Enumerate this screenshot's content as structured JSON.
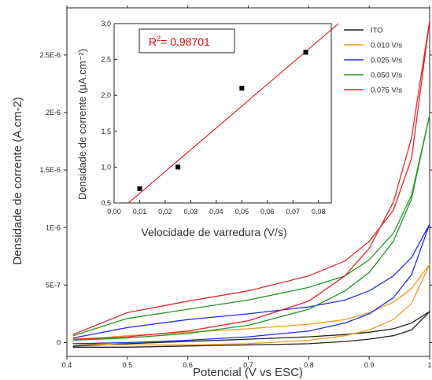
{
  "chart_data": [
    {
      "type": "line",
      "xlabel": "Potencial (V vs ESC)",
      "ylabel": "Densidade de corrente  (A.cm-2)",
      "xlim": [
        0.4,
        1.0
      ],
      "ylim": [
        -1.2e-07,
        2.91e-06
      ],
      "x_ticks": [
        "0.4",
        "0.5",
        "0.6",
        "0.7",
        "0.8",
        "0.9",
        "1"
      ],
      "y_ticks": [
        "0",
        "5E-7",
        "1E-6",
        "1.5E-6",
        "2E-6",
        "2.5E-6"
      ],
      "y_tick_values": [
        0,
        5e-07,
        1e-06,
        1.5e-06,
        2e-06,
        2.5e-06
      ],
      "legend_position": "top-right",
      "series": [
        {
          "name": "ITO",
          "color": "#222222",
          "forward": {
            "x": [
              0.41,
              0.5,
              0.6,
              0.7,
              0.8,
              0.86,
              0.9,
              0.94,
              0.97,
              1.0
            ],
            "y": [
              -3e-08,
              -1e-08,
              1e-08,
              3e-08,
              5e-08,
              7e-08,
              9e-08,
              1.2e-07,
              1.7e-07,
              2.7e-07
            ]
          },
          "reverse": {
            "x": [
              1.0,
              0.97,
              0.94,
              0.9,
              0.86,
              0.8,
              0.7,
              0.6,
              0.5,
              0.41
            ],
            "y": [
              2.7e-07,
              1.1e-07,
              6e-08,
              3e-08,
              1e-08,
              -1e-08,
              -2e-08,
              -3e-08,
              -4e-08,
              -4e-08
            ]
          }
        },
        {
          "name": "0.010 V/s",
          "color": "#f39a1e",
          "forward": {
            "x": [
              0.41,
              0.5,
              0.6,
              0.7,
              0.8,
              0.86,
              0.9,
              0.94,
              0.97,
              1.0
            ],
            "y": [
              2e-08,
              6e-08,
              9e-08,
              1.2e-07,
              1.6e-07,
              2e-07,
              2.6e-07,
              3.5e-07,
              4.7e-07,
              6.8e-07
            ]
          },
          "reverse": {
            "x": [
              1.0,
              0.97,
              0.94,
              0.9,
              0.86,
              0.8,
              0.7,
              0.6,
              0.5,
              0.41
            ],
            "y": [
              6.8e-07,
              3.4e-07,
              2e-07,
              1.1e-07,
              6e-08,
              2e-08,
              -1e-08,
              -2e-08,
              -2e-08,
              -1e-08
            ]
          }
        },
        {
          "name": "0.025 V/s",
          "color": "#1f2ee6",
          "forward": {
            "x": [
              0.41,
              0.5,
              0.6,
              0.7,
              0.8,
              0.86,
              0.9,
              0.94,
              0.97,
              1.0
            ],
            "y": [
              4e-08,
              1.3e-07,
              2e-07,
              2.5e-07,
              3.1e-07,
              3.7e-07,
              4.5e-07,
              5.8e-07,
              7.4e-07,
              1.03e-06
            ]
          },
          "reverse": {
            "x": [
              1.0,
              0.97,
              0.94,
              0.9,
              0.86,
              0.8,
              0.7,
              0.6,
              0.5,
              0.41
            ],
            "y": [
              1.03e-06,
              5.9e-07,
              3.9e-07,
              2.5e-07,
              1.7e-07,
              1e-07,
              5e-08,
              2e-08,
              0.0,
              -1e-08
            ]
          }
        },
        {
          "name": "0.050 V/s",
          "color": "#1f9a1f",
          "forward": {
            "x": [
              0.41,
              0.5,
              0.6,
              0.7,
              0.8,
              0.86,
              0.9,
              0.94,
              0.97,
              1.0
            ],
            "y": [
              6e-08,
              2.1e-07,
              2.9e-07,
              3.7e-07,
              4.8e-07,
              5.8e-07,
              7.2e-07,
              9.5e-07,
              1.28e-06,
              1.98e-06
            ]
          },
          "reverse": {
            "x": [
              1.0,
              0.97,
              0.94,
              0.9,
              0.86,
              0.8,
              0.7,
              0.6,
              0.5,
              0.41
            ],
            "y": [
              1.98e-06,
              1.25e-06,
              8.8e-07,
              6.1e-07,
              4.5e-07,
              2.9e-07,
              1.5e-07,
              8e-08,
              4e-08,
              2e-08
            ]
          }
        },
        {
          "name": "0.075 V/s",
          "color": "#e3262b",
          "forward": {
            "x": [
              0.41,
              0.5,
              0.6,
              0.7,
              0.8,
              0.86,
              0.9,
              0.94,
              0.97,
              1.0
            ],
            "y": [
              7e-08,
              2.6e-07,
              3.6e-07,
              4.5e-07,
              5.8e-07,
              7.1e-07,
              8.8e-07,
              1.15e-06,
              1.6e-06,
              2.8e-06
            ]
          },
          "reverse": {
            "x": [
              1.0,
              0.97,
              0.94,
              0.9,
              0.86,
              0.8,
              0.7,
              0.6,
              0.5,
              0.41
            ],
            "y": [
              2.8e-06,
              1.78e-06,
              1.22e-06,
              8.2e-07,
              5.8e-07,
              3.6e-07,
              1.9e-07,
              1e-07,
              5e-08,
              3e-08
            ]
          }
        }
      ]
    },
    {
      "type": "scatter",
      "xlabel": "Velocidade de varredura (V/s)",
      "ylabel": "Densidade de corrente (µA.cm⁻²)",
      "xlim": [
        0.0,
        0.085
      ],
      "ylim": [
        0.5,
        3.0
      ],
      "x_ticks": [
        "0,00",
        "0,01",
        "0,02",
        "0,03",
        "0,04",
        "0,05",
        "0,06",
        "0,07",
        "0,08"
      ],
      "x_tick_values": [
        0.0,
        0.01,
        0.02,
        0.03,
        0.04,
        0.05,
        0.06,
        0.07,
        0.08
      ],
      "y_ticks": [
        "0,5",
        "1,0",
        "1,5",
        "2,0",
        "2,5",
        "3,0"
      ],
      "y_tick_values": [
        0.5,
        1.0,
        1.5,
        2.0,
        2.5,
        3.0
      ],
      "points": {
        "x": [
          0.01,
          0.025,
          0.05,
          0.075
        ],
        "y": [
          0.7,
          1.0,
          2.1,
          2.6
        ]
      },
      "fit": {
        "slope": 30.4,
        "intercept": 0.33,
        "color": "#e00000"
      },
      "annotation_prefix": "R",
      "annotation_sup": "2",
      "annotation_value": "= 0,98701"
    }
  ]
}
